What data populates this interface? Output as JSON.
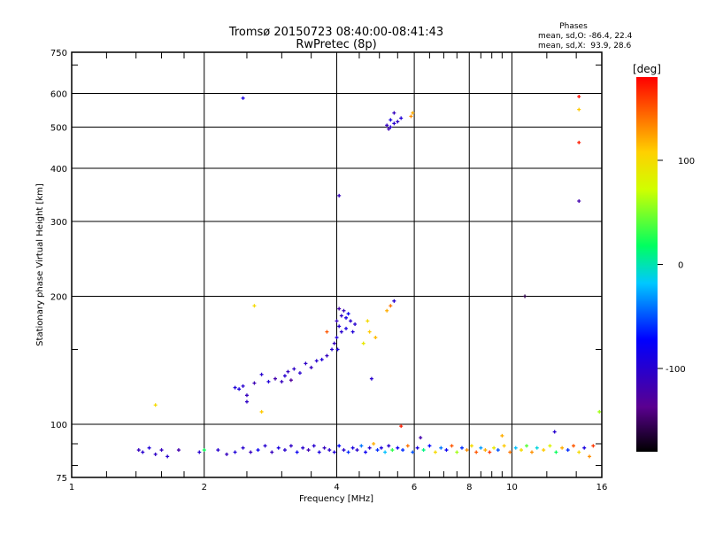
{
  "chart_data": {
    "type": "scatter",
    "title": "Tromsø 20150723 08:40:00-08:41:43",
    "subtitle": "RwPretec (8p)",
    "xlabel": "Frequency [MHz]",
    "ylabel": "Stationary phase Virtual Height [km]",
    "xscale": "log",
    "yscale": "log",
    "xlim": [
      1,
      16
    ],
    "ylim": [
      75,
      750
    ],
    "x_ticks": [
      1,
      2,
      4,
      6,
      8,
      10,
      16
    ],
    "y_ticks": [
      75,
      100,
      200,
      300,
      400,
      500,
      600,
      750
    ],
    "x_grid": [
      2,
      4,
      6,
      8,
      10
    ],
    "y_grid": [
      100,
      200,
      300,
      400,
      500,
      600
    ],
    "grid": true,
    "stats": {
      "heading": "Phases",
      "o_line": "mean, sd,O: -86.4, 22.4",
      "x_line": "mean, sd,X:  93.9, 28.6"
    },
    "colorbar": {
      "label": "[deg]",
      "range": [
        -180,
        180
      ],
      "ticks": [
        100,
        0,
        -100
      ],
      "colormap": "rainbow-black-to-red"
    },
    "point_fields": [
      "frequency_mhz",
      "height_km",
      "phase_deg"
    ],
    "points": [
      [
        2.35,
        122,
        -95
      ],
      [
        2.4,
        121,
        -90
      ],
      [
        2.45,
        123,
        -100
      ],
      [
        2.5,
        117,
        -110
      ],
      [
        2.5,
        113,
        -105
      ],
      [
        2.6,
        125,
        -115
      ],
      [
        2.7,
        131,
        -100
      ],
      [
        2.8,
        126,
        -95
      ],
      [
        2.9,
        128,
        -120
      ],
      [
        3.0,
        126,
        -110
      ],
      [
        3.05,
        130,
        -100
      ],
      [
        3.1,
        133,
        -110
      ],
      [
        3.15,
        127,
        -130
      ],
      [
        3.2,
        135,
        -105
      ],
      [
        3.3,
        132,
        -100
      ],
      [
        3.4,
        139,
        -105
      ],
      [
        3.5,
        136,
        -110
      ],
      [
        3.6,
        141,
        -100
      ],
      [
        3.7,
        142,
        -95
      ],
      [
        3.8,
        145,
        -110
      ],
      [
        3.9,
        150,
        -100
      ],
      [
        3.95,
        155,
        -110
      ],
      [
        4.0,
        160,
        -95
      ],
      [
        4.05,
        170,
        -100
      ],
      [
        4.1,
        180,
        -105
      ],
      [
        4.15,
        185,
        -110
      ],
      [
        4.05,
        187,
        -120
      ],
      [
        4.2,
        178,
        -90
      ],
      [
        4.3,
        175,
        -100
      ],
      [
        4.25,
        182,
        -80
      ],
      [
        4.1,
        165,
        -100
      ],
      [
        4.0,
        175,
        -110
      ],
      [
        4.2,
        168,
        -90
      ],
      [
        4.35,
        165,
        -95
      ],
      [
        4.4,
        172,
        -100
      ],
      [
        4.02,
        150,
        -95
      ],
      [
        4.7,
        175,
        100
      ],
      [
        4.75,
        165,
        110
      ],
      [
        4.9,
        160,
        115
      ],
      [
        5.2,
        185,
        120
      ],
      [
        5.3,
        190,
        140
      ],
      [
        5.4,
        195,
        -100
      ],
      [
        4.6,
        155,
        90
      ],
      [
        3.8,
        165,
        150
      ],
      [
        2.6,
        190,
        100
      ],
      [
        1.55,
        111,
        100
      ],
      [
        2.7,
        107,
        110
      ],
      [
        4.8,
        128,
        -100
      ],
      [
        5.2,
        505,
        -110
      ],
      [
        5.3,
        500,
        -100
      ],
      [
        5.4,
        510,
        -100
      ],
      [
        5.5,
        515,
        -105
      ],
      [
        5.3,
        520,
        -90
      ],
      [
        5.4,
        540,
        -110
      ],
      [
        5.25,
        495,
        -115
      ],
      [
        5.6,
        525,
        -95
      ],
      [
        5.9,
        530,
        130
      ],
      [
        5.95,
        540,
        120
      ],
      [
        2.45,
        585,
        -90
      ],
      [
        4.05,
        345,
        -110
      ],
      [
        14.2,
        590,
        175
      ],
      [
        14.2,
        550,
        110
      ],
      [
        14.2,
        460,
        170
      ],
      [
        14.2,
        335,
        -120
      ],
      [
        10.7,
        200,
        -160
      ],
      [
        15.8,
        107,
        60
      ],
      [
        1.42,
        87,
        -110
      ],
      [
        1.45,
        86,
        -100
      ],
      [
        1.5,
        88,
        -95
      ],
      [
        1.55,
        85,
        -105
      ],
      [
        1.6,
        87,
        -110
      ],
      [
        1.65,
        84,
        -100
      ],
      [
        1.75,
        87,
        -120
      ],
      [
        1.95,
        86,
        -100
      ],
      [
        2.0,
        87,
        20
      ],
      [
        2.15,
        87,
        -100
      ],
      [
        2.25,
        85,
        -110
      ],
      [
        2.35,
        86,
        -95
      ],
      [
        2.45,
        88,
        -100
      ],
      [
        2.55,
        86,
        -110
      ],
      [
        2.65,
        87,
        -80
      ],
      [
        2.75,
        89,
        -100
      ],
      [
        2.85,
        86,
        -110
      ],
      [
        2.95,
        88,
        -90
      ],
      [
        3.05,
        87,
        -100
      ],
      [
        3.15,
        89,
        -105
      ],
      [
        3.25,
        86,
        -80
      ],
      [
        3.35,
        88,
        -100
      ],
      [
        3.45,
        87,
        -115
      ],
      [
        3.55,
        89,
        -100
      ],
      [
        3.65,
        86,
        -90
      ],
      [
        3.75,
        88,
        -110
      ],
      [
        3.85,
        87,
        -100
      ],
      [
        3.95,
        86,
        -95
      ],
      [
        4.05,
        89,
        -70
      ],
      [
        4.15,
        87,
        -100
      ],
      [
        4.25,
        86,
        -60
      ],
      [
        4.35,
        88,
        -90
      ],
      [
        4.45,
        87,
        -100
      ],
      [
        4.55,
        89,
        -40
      ],
      [
        4.65,
        86,
        -80
      ],
      [
        4.75,
        88,
        -100
      ],
      [
        4.85,
        90,
        120
      ],
      [
        4.95,
        87,
        -60
      ],
      [
        5.05,
        88,
        -90
      ],
      [
        5.15,
        86,
        -20
      ],
      [
        5.25,
        89,
        -100
      ],
      [
        5.35,
        87,
        30
      ],
      [
        5.5,
        88,
        -80
      ],
      [
        5.65,
        87,
        -60
      ],
      [
        5.8,
        89,
        140
      ],
      [
        5.95,
        86,
        -50
      ],
      [
        6.1,
        88,
        -90
      ],
      [
        6.3,
        87,
        10
      ],
      [
        6.5,
        89,
        -70
      ],
      [
        6.7,
        86,
        100
      ],
      [
        6.9,
        88,
        -40
      ],
      [
        7.1,
        87,
        -80
      ],
      [
        7.3,
        89,
        150
      ],
      [
        7.5,
        86,
        60
      ],
      [
        7.7,
        88,
        -60
      ],
      [
        7.9,
        87,
        130
      ],
      [
        8.1,
        89,
        100
      ],
      [
        8.3,
        86,
        150
      ],
      [
        8.5,
        88,
        -30
      ],
      [
        8.7,
        87,
        120
      ],
      [
        8.9,
        86,
        160
      ],
      [
        9.1,
        88,
        90
      ],
      [
        9.3,
        87,
        -50
      ],
      [
        9.6,
        89,
        110
      ],
      [
        9.9,
        86,
        140
      ],
      [
        10.2,
        88,
        -20
      ],
      [
        10.5,
        87,
        100
      ],
      [
        10.8,
        89,
        40
      ],
      [
        11.1,
        86,
        130
      ],
      [
        11.4,
        88,
        -10
      ],
      [
        11.8,
        87,
        110
      ],
      [
        12.2,
        89,
        80
      ],
      [
        12.6,
        86,
        20
      ],
      [
        13.0,
        88,
        120
      ],
      [
        13.4,
        87,
        -60
      ],
      [
        13.8,
        89,
        150
      ],
      [
        14.2,
        86,
        100
      ],
      [
        14.6,
        88,
        -90
      ],
      [
        15.0,
        84,
        130
      ],
      [
        15.3,
        89,
        160
      ],
      [
        5.6,
        99,
        170
      ],
      [
        9.5,
        94,
        120
      ],
      [
        12.5,
        96,
        -100
      ],
      [
        6.2,
        93,
        -120
      ]
    ]
  }
}
